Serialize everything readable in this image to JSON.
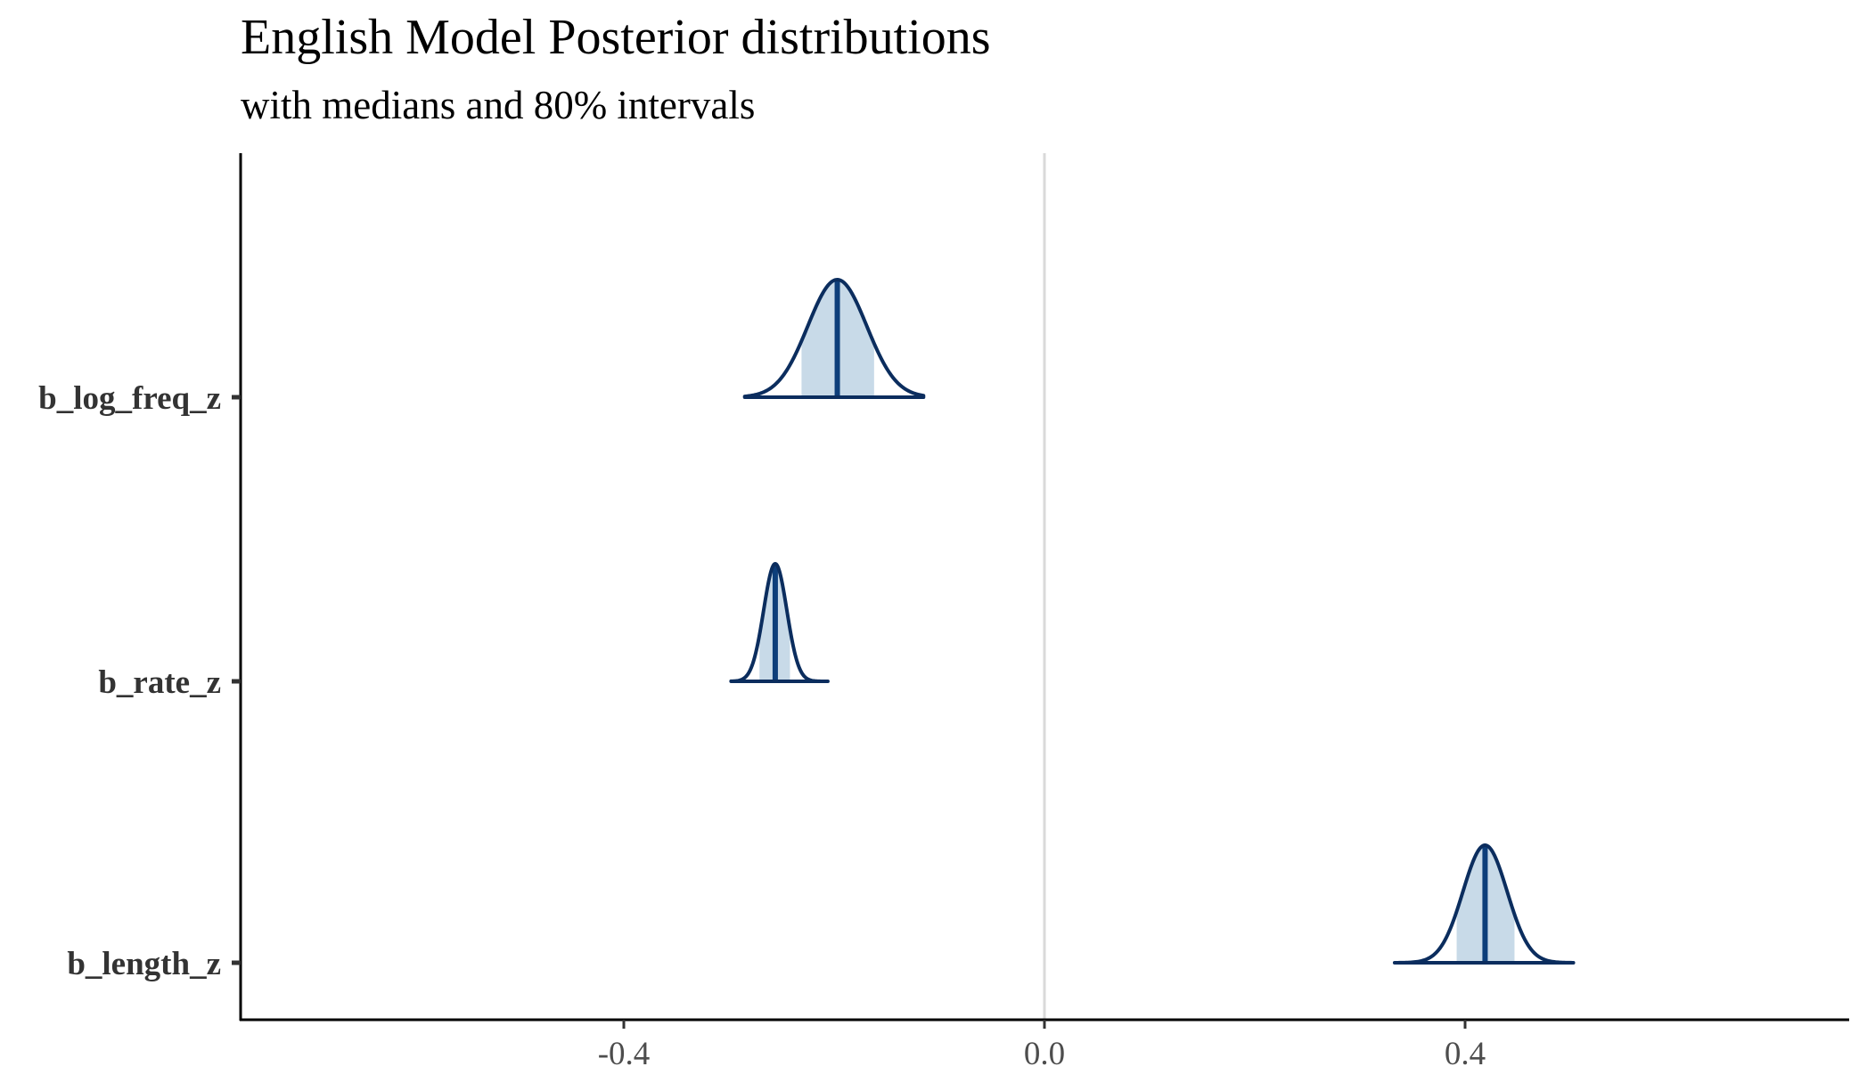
{
  "title": "English Model Posterior distributions",
  "subtitle": "with medians and 80% intervals",
  "chart_data": {
    "type": "density-ridges",
    "title": "English Model Posterior distributions",
    "subtitle": "with medians and 80% intervals",
    "xlabel": "",
    "ylabel": "",
    "xlim": [
      -0.77,
      0.77
    ],
    "x_ticks": [
      -0.4,
      0.0,
      0.4
    ],
    "x_tick_labels": [
      "-0.4",
      "0.0",
      "0.4"
    ],
    "reference_line_x": 0.0,
    "grid": false,
    "colors": {
      "outline": "#0b2d5e",
      "median": "#0d3e7a",
      "interval_fill": "#c8dae8",
      "reference_line": "#d9d9d9",
      "axis": "#000000"
    },
    "parameters": [
      {
        "name": "b_log_freq_z",
        "median": -0.197,
        "interval_80": [
          -0.231,
          -0.162
        ],
        "sd": 0.028,
        "range": [
          -0.285,
          -0.115
        ]
      },
      {
        "name": "b_rate_z",
        "median": -0.256,
        "interval_80": [
          -0.271,
          -0.242
        ],
        "sd": 0.011,
        "range": [
          -0.298,
          -0.206
        ]
      },
      {
        "name": "b_length_z",
        "median": 0.419,
        "interval_80": [
          0.392,
          0.447
        ],
        "sd": 0.021,
        "range": [
          0.333,
          0.503
        ]
      }
    ]
  }
}
